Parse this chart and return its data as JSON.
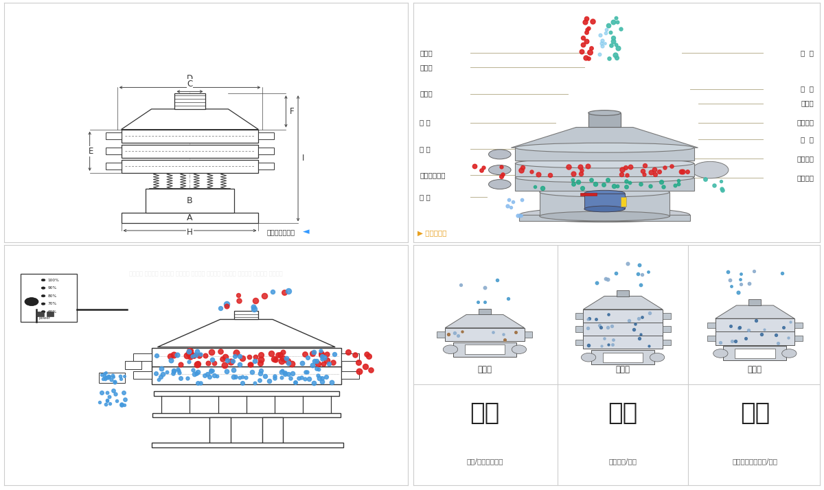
{
  "bg_color": "#ffffff",
  "border_color": "#cccccc",
  "left_labels": [
    "进料口",
    "防尘盖",
    "出料口",
    "束 环",
    "弹 簧",
    "运输固定螺栓",
    "机 座"
  ],
  "right_labels": [
    "筛  网",
    "网  架",
    "加重块",
    "上部重锤",
    "筛  盘",
    "振动电机",
    "下部重锤"
  ],
  "single_label": "单层式",
  "triple_label": "三层式",
  "double_label": "双层式",
  "func1_title": "分级",
  "func2_title": "过滤",
  "func3_title": "除杂",
  "func1_sub": "颗粒/粉末准确分级",
  "func2_sub": "去除异物/结块",
  "func3_sub": "去除液体中的颗粒/异物",
  "outer_label": "外形尺寸示意图",
  "struct_label": "结构示意图",
  "red_color": "#dd2222",
  "blue_color": "#4499dd",
  "green_color": "#22aa88",
  "teal_color": "#44aacc",
  "line_color": "#b8b090",
  "arrow_color": "#e8a020",
  "machine_gray": "#b8bec8",
  "machine_light": "#d8dde5",
  "machine_dark": "#909aaa",
  "motor_blue": "#5580b8"
}
